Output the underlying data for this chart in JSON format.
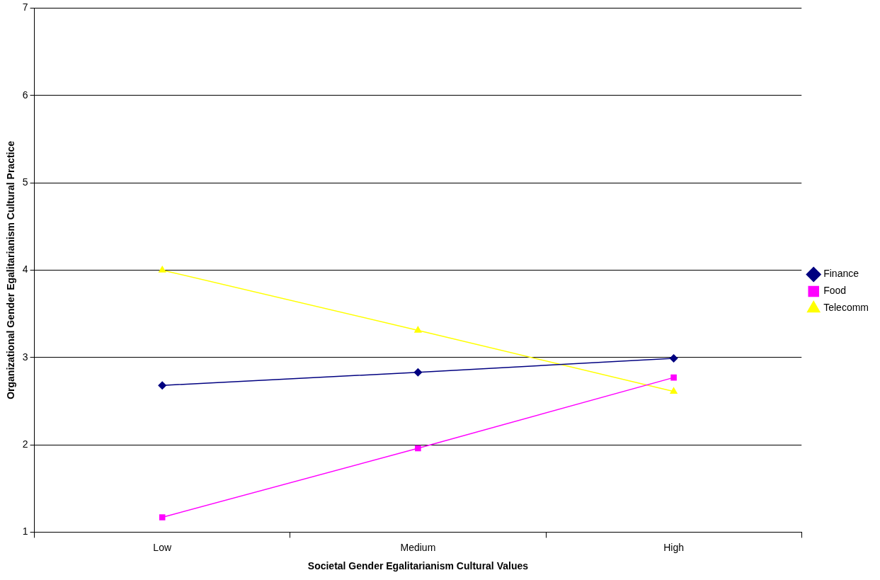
{
  "chart_data": {
    "type": "line",
    "xlabel": "Societal Gender Egalitarianism Cultural Values",
    "ylabel": "Organizational Gender Egalitarianism Cultural Practice",
    "categories": [
      "Low",
      "Medium",
      "High"
    ],
    "series": [
      {
        "name": "Finance",
        "color": "#000080",
        "marker": "diamond",
        "values": [
          2.68,
          2.83,
          2.99
        ]
      },
      {
        "name": "Food",
        "color": "#ff00ff",
        "marker": "square",
        "values": [
          1.17,
          1.96,
          2.77
        ]
      },
      {
        "name": "Telecomm",
        "color": "#ffff00",
        "marker": "triangle",
        "values": [
          4.0,
          3.31,
          2.61
        ]
      }
    ],
    "ylim": [
      1,
      7
    ],
    "yticks": [
      1,
      2,
      3,
      4,
      5,
      6,
      7
    ],
    "grid": "y",
    "legend": "right",
    "line_style": "solid"
  }
}
